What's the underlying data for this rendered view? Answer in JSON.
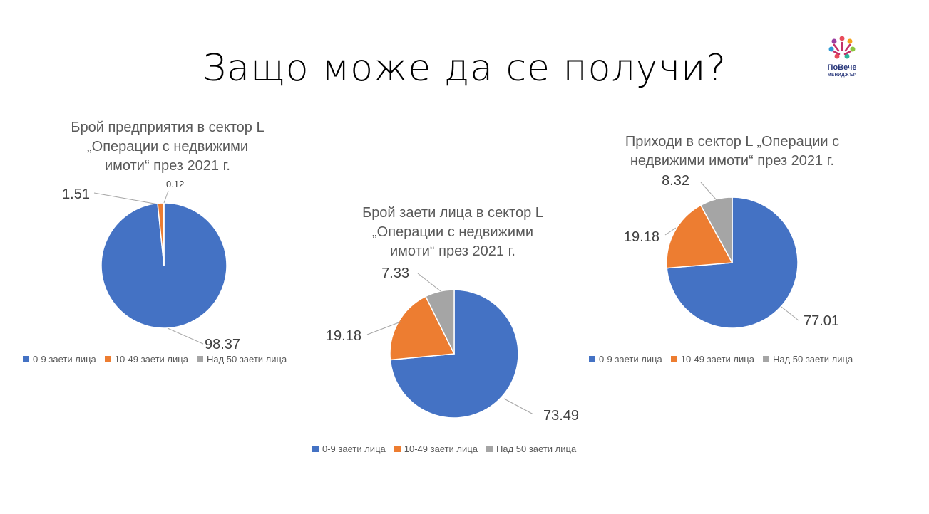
{
  "slide": {
    "title": "Защо може да се получи?",
    "logo": {
      "name": "ПоВече",
      "sub": "МЕНИДЖЪР"
    }
  },
  "legend_labels": [
    "0-9 заети лица",
    "10-49 заети лица",
    "Над 50 заети лица"
  ],
  "colors": {
    "blue": "#4472C4",
    "orange": "#ED7D31",
    "gray": "#A5A5A5"
  },
  "chart_data": [
    {
      "type": "pie",
      "title_lines": [
        "Брой предприятия в сектор L",
        "„Операции с недвижими",
        "имоти“ през 2021 г."
      ],
      "categories": [
        "0-9 заети лица",
        "10-49 заети лица",
        "Над 50 заети лица"
      ],
      "values": [
        98.37,
        1.51,
        0.12
      ],
      "labels": [
        "98.37",
        "1.51",
        "0.12"
      ],
      "legend_position": "bottom"
    },
    {
      "type": "pie",
      "title_lines": [
        "Брой заети лица в сектор L",
        "„Операции с недвижими",
        "имоти“ през 2021 г."
      ],
      "categories": [
        "0-9 заети лица",
        "10-49 заети лица",
        "Над 50 заети лица"
      ],
      "values": [
        73.49,
        19.18,
        7.33
      ],
      "labels": [
        "73.49",
        "19.18",
        "7.33"
      ],
      "legend_position": "bottom"
    },
    {
      "type": "pie",
      "title_lines": [
        "Приходи в сектор L „Операции с",
        "недвижими имоти“ през 2021 г."
      ],
      "categories": [
        "0-9 заети лица",
        "10-49 заети лица",
        "Над 50 заети лица"
      ],
      "values": [
        77.01,
        19.18,
        8.32
      ],
      "labels": [
        "77.01",
        "19.18",
        "8.32"
      ],
      "legend_position": "bottom"
    }
  ]
}
